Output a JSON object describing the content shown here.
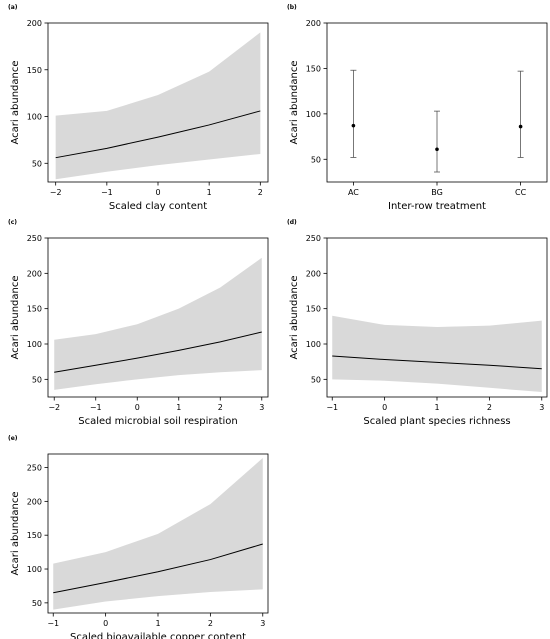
{
  "chart_data": [
    {
      "panel": "(a)",
      "type": "line",
      "xlabel": "Scaled clay content",
      "ylabel": "Acari abundance",
      "xlim": [
        -2.15,
        2.15
      ],
      "ylim": [
        30,
        200
      ],
      "xticks": [
        -2,
        -1,
        0,
        1,
        2
      ],
      "xtick_labels": [
        "−2",
        "−1",
        "0",
        "1",
        "2"
      ],
      "yticks": [
        50,
        100,
        150,
        200
      ],
      "ytick_labels": [
        "50",
        "100",
        "150",
        "200"
      ],
      "x": [
        -2,
        -1,
        0,
        1,
        2
      ],
      "fit": [
        56,
        66,
        78,
        91,
        106
      ],
      "lower": [
        33,
        41,
        48,
        54,
        60
      ],
      "upper": [
        101,
        106,
        123,
        148,
        190
      ]
    },
    {
      "panel": "(b)",
      "type": "scatter",
      "xlabel": "Inter-row treatment",
      "ylabel": "Acari abundance",
      "categories": [
        "AC",
        "BG",
        "CC"
      ],
      "ylim": [
        25,
        200
      ],
      "yticks": [
        50,
        100,
        150,
        200
      ],
      "ytick_labels": [
        "50",
        "100",
        "150",
        "200"
      ],
      "values": [
        87,
        61,
        86
      ],
      "lower": [
        52,
        36,
        52
      ],
      "upper": [
        148,
        103,
        147
      ]
    },
    {
      "panel": "(c)",
      "type": "line",
      "xlabel": "Scaled microbial soil respiration",
      "ylabel": "Acari abundance",
      "xlim": [
        -2.15,
        3.15
      ],
      "ylim": [
        25,
        250
      ],
      "xticks": [
        -2,
        -1,
        0,
        1,
        2,
        3
      ],
      "xtick_labels": [
        "−2",
        "−1",
        "0",
        "1",
        "2",
        "3"
      ],
      "yticks": [
        50,
        100,
        150,
        200,
        250
      ],
      "ytick_labels": [
        "50",
        "100",
        "150",
        "200",
        "250"
      ],
      "x": [
        -2,
        -1,
        0,
        1,
        2,
        3
      ],
      "fit": [
        60,
        70,
        80,
        91,
        103,
        117
      ],
      "lower": [
        35,
        43,
        50,
        56,
        60,
        63
      ],
      "upper": [
        106,
        114,
        128,
        150,
        180,
        222
      ]
    },
    {
      "panel": "(d)",
      "type": "line",
      "xlabel": "Scaled plant species richness",
      "ylabel": "Acari abundance",
      "xlim": [
        -1.1,
        3.1
      ],
      "ylim": [
        25,
        250
      ],
      "xticks": [
        -1,
        0,
        1,
        2,
        3
      ],
      "xtick_labels": [
        "−1",
        "0",
        "1",
        "2",
        "3"
      ],
      "yticks": [
        50,
        100,
        150,
        200,
        250
      ],
      "ytick_labels": [
        "50",
        "100",
        "150",
        "200",
        "250"
      ],
      "x": [
        -1,
        0,
        1,
        2,
        3
      ],
      "fit": [
        83,
        78,
        74,
        70,
        65
      ],
      "lower": [
        50,
        48,
        44,
        38,
        32
      ],
      "upper": [
        140,
        127,
        124,
        126,
        133
      ]
    },
    {
      "panel": "(e)",
      "type": "line",
      "xlabel": "Scaled bioavailable copper content",
      "ylabel": "Acari abundance",
      "xlim": [
        -1.1,
        3.1
      ],
      "ylim": [
        35,
        270
      ],
      "xticks": [
        -1,
        0,
        1,
        2,
        3
      ],
      "xtick_labels": [
        "−1",
        "0",
        "1",
        "2",
        "3"
      ],
      "yticks": [
        50,
        100,
        150,
        200,
        250
      ],
      "ytick_labels": [
        "50",
        "100",
        "150",
        "200",
        "250"
      ],
      "x": [
        -1,
        0,
        1,
        2,
        3
      ],
      "fit": [
        65,
        80,
        96,
        114,
        137
      ],
      "lower": [
        40,
        52,
        60,
        66,
        70
      ],
      "upper": [
        108,
        125,
        152,
        196,
        264
      ]
    }
  ]
}
